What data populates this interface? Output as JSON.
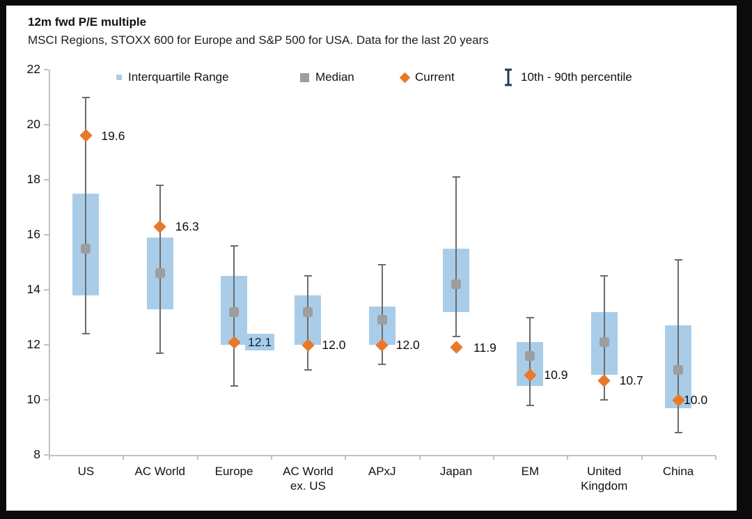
{
  "header": {
    "title": "12m fwd P/E multiple",
    "subtitle": "MSCI Regions, STOXX 600 for Europe and S&P 500 for USA. Data for the last 20 years"
  },
  "legend": {
    "items": [
      {
        "label": "Interquartile Range",
        "marker": "blue-square"
      },
      {
        "label": "Median",
        "marker": "gray-square"
      },
      {
        "label": "Current",
        "marker": "orange-diamond"
      },
      {
        "label": "10th - 90th percentile",
        "marker": "ibeam"
      }
    ]
  },
  "colors": {
    "iqr_box": "#A9CDE9",
    "median": "#9E9E9E",
    "current": "#E8792B",
    "whisker": "#6b6b6b",
    "axis": "#c2c2c2",
    "ibeam": "#253B56",
    "text": "#111111",
    "label_highlight_bg": "#A9CDE9"
  },
  "chart_data": {
    "type": "boxplot",
    "title": "12m fwd P/E multiple",
    "subtitle": "MSCI Regions, STOXX 600 for Europe and S&P 500 for USA. Data for the last 20 years",
    "ylim": [
      8,
      22
    ],
    "yticks": [
      8,
      10,
      12,
      14,
      16,
      18,
      20,
      22
    ],
    "grid": false,
    "legend_position": "top",
    "categories": [
      "US",
      "AC World",
      "Europe",
      "AC World\nex. US",
      "APxJ",
      "Japan",
      "EM",
      "United\nKingdom",
      "China"
    ],
    "series": [
      {
        "name": "US",
        "p10": 12.4,
        "q1": 13.8,
        "median": 15.5,
        "q3": 17.5,
        "p90": 21.0,
        "current": 19.6,
        "current_label": "19.6",
        "label_highlight": false
      },
      {
        "name": "AC World",
        "p10": 11.7,
        "q1": 13.3,
        "median": 14.6,
        "q3": 15.9,
        "p90": 17.8,
        "current": 16.3,
        "current_label": "16.3",
        "label_highlight": false
      },
      {
        "name": "Europe",
        "p10": 10.5,
        "q1": 12.0,
        "median": 13.2,
        "q3": 14.5,
        "p90": 15.6,
        "current": 12.1,
        "current_label": "12.1",
        "label_highlight": true
      },
      {
        "name": "AC World ex. US",
        "p10": 11.1,
        "q1": 12.0,
        "median": 13.2,
        "q3": 13.8,
        "p90": 14.5,
        "current": 12.0,
        "current_label": "12.0",
        "label_highlight": false
      },
      {
        "name": "APxJ",
        "p10": 11.3,
        "q1": 12.0,
        "median": 12.9,
        "q3": 13.4,
        "p90": 14.9,
        "current": 12.0,
        "current_label": "12.0",
        "label_highlight": false
      },
      {
        "name": "Japan",
        "p10": 12.3,
        "q1": 13.2,
        "median": 14.2,
        "q3": 15.5,
        "p90": 18.1,
        "current": 11.9,
        "current_label": "11.9",
        "label_highlight": false
      },
      {
        "name": "EM",
        "p10": 9.8,
        "q1": 10.5,
        "median": 11.6,
        "q3": 12.1,
        "p90": 13.0,
        "current": 10.9,
        "current_label": "10.9",
        "label_highlight": false
      },
      {
        "name": "United Kingdom",
        "p10": 10.0,
        "q1": 10.9,
        "median": 12.1,
        "q3": 13.2,
        "p90": 14.5,
        "current": 10.7,
        "current_label": "10.7",
        "label_highlight": false
      },
      {
        "name": "China",
        "p10": 8.8,
        "q1": 9.7,
        "median": 11.1,
        "q3": 12.7,
        "p90": 15.1,
        "current": 10.0,
        "current_label": "10.0",
        "label_highlight": false
      }
    ]
  }
}
